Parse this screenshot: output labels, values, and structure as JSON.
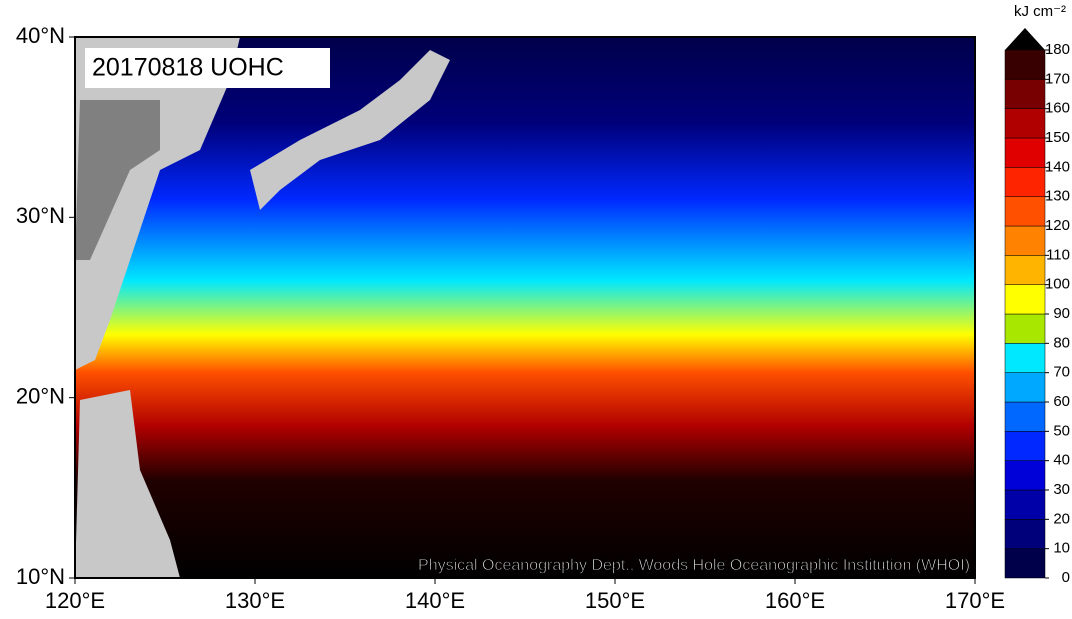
{
  "map": {
    "title": "20170818 UOHC",
    "credit": "Physical Oceanography Dept., Woods Hole Oceanographic Institution (WHOI)",
    "lon_ticks": [
      {
        "value": 120,
        "label": "120°E"
      },
      {
        "value": 130,
        "label": "130°E"
      },
      {
        "value": 140,
        "label": "140°E"
      },
      {
        "value": 150,
        "label": "150°E"
      },
      {
        "value": 160,
        "label": "160°E"
      },
      {
        "value": 170,
        "label": "170°E"
      }
    ],
    "lat_ticks": [
      {
        "value": 10,
        "label": "10°N"
      },
      {
        "value": 20,
        "label": "20°N"
      },
      {
        "value": 30,
        "label": "30°N"
      },
      {
        "value": 40,
        "label": "40°N"
      }
    ],
    "colorbar": {
      "unit": "kJ cm⁻²",
      "ticks": [
        0,
        10,
        20,
        30,
        40,
        50,
        60,
        70,
        80,
        90,
        100,
        110,
        120,
        130,
        140,
        150,
        160,
        170,
        180
      ],
      "colors": [
        "#00004a",
        "#00007a",
        "#0000a8",
        "#0000d8",
        "#0028ff",
        "#0068ff",
        "#00a8ff",
        "#00e8ff",
        "#a8e800",
        "#ffff00",
        "#ffb400",
        "#ff8200",
        "#ff5000",
        "#ff2400",
        "#e00000",
        "#b00000",
        "#780000",
        "#380000"
      ],
      "arrow_color": "#000000"
    }
  }
}
